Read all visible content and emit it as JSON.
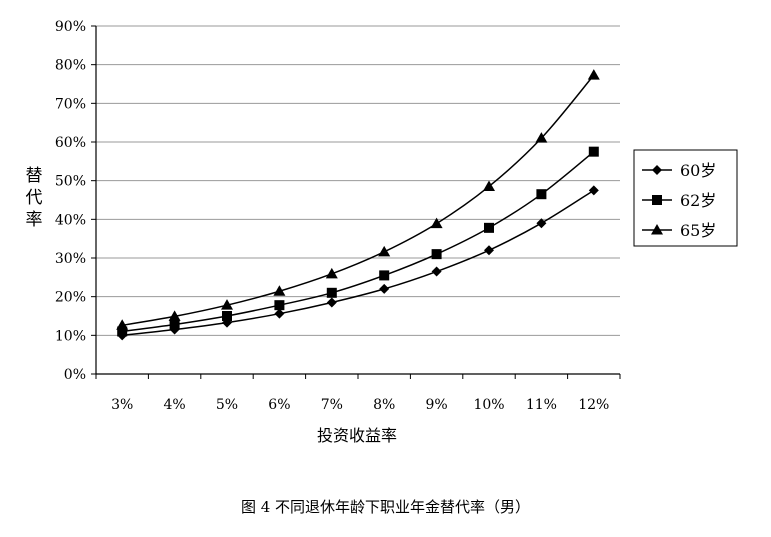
{
  "chart_data": {
    "type": "line",
    "title": "",
    "xlabel": "投资收益率",
    "ylabel": "替代率",
    "categories": [
      "3%",
      "4%",
      "5%",
      "6%",
      "7%",
      "8%",
      "9%",
      "10%",
      "11%",
      "12%"
    ],
    "ylim": [
      0,
      90
    ],
    "yticks": [
      "0%",
      "10%",
      "20%",
      "30%",
      "40%",
      "50%",
      "60%",
      "70%",
      "80%",
      "90%"
    ],
    "grid": "horizontal",
    "legend": "right",
    "series": [
      {
        "name": "60岁",
        "marker": "diamond",
        "values": [
          10,
          11.5,
          13.3,
          15.6,
          18.5,
          22,
          26.5,
          32,
          39,
          47.5
        ]
      },
      {
        "name": "62岁",
        "marker": "square",
        "values": [
          11,
          12.8,
          15,
          17.8,
          21,
          25.5,
          31,
          37.8,
          46.5,
          57.5
        ]
      },
      {
        "name": "65岁",
        "marker": "triangle",
        "values": [
          12.6,
          14.9,
          17.8,
          21.4,
          25.9,
          31.6,
          38.9,
          48.5,
          61,
          77.3
        ]
      }
    ]
  },
  "caption": "图 4  不同退休年龄下职业年金替代率（男）"
}
